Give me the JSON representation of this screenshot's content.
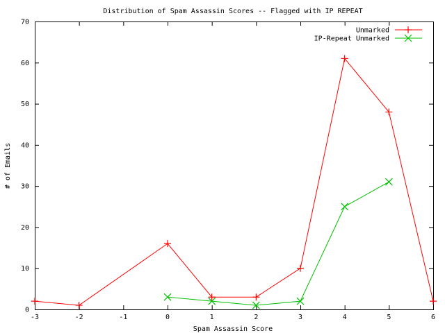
{
  "chart_data": {
    "type": "line",
    "title": "Distribution of Spam Assassin Scores -- Flagged with IP REPEAT",
    "xlabel": "Spam Assassin Score",
    "ylabel": "# of Emails",
    "xlim": [
      -3,
      6
    ],
    "ylim": [
      0,
      70
    ],
    "xticks": [
      -3,
      -2,
      -1,
      0,
      1,
      2,
      3,
      4,
      5,
      6
    ],
    "yticks": [
      0,
      10,
      20,
      30,
      40,
      50,
      60,
      70
    ],
    "grid": false,
    "legend_position": "top-right",
    "series": [
      {
        "name": "Unmarked",
        "color": "#ff0000",
        "marker": "plus",
        "x": [
          -3,
          -2,
          0,
          1,
          2,
          3,
          4,
          5,
          6
        ],
        "y": [
          2,
          1,
          16,
          3,
          3,
          10,
          61,
          48,
          2
        ]
      },
      {
        "name": "IP-Repeat Unmarked",
        "color": "#00c000",
        "marker": "cross",
        "x": [
          0,
          1,
          2,
          3,
          4,
          5
        ],
        "y": [
          3,
          2,
          1,
          2,
          25,
          31
        ]
      }
    ]
  }
}
